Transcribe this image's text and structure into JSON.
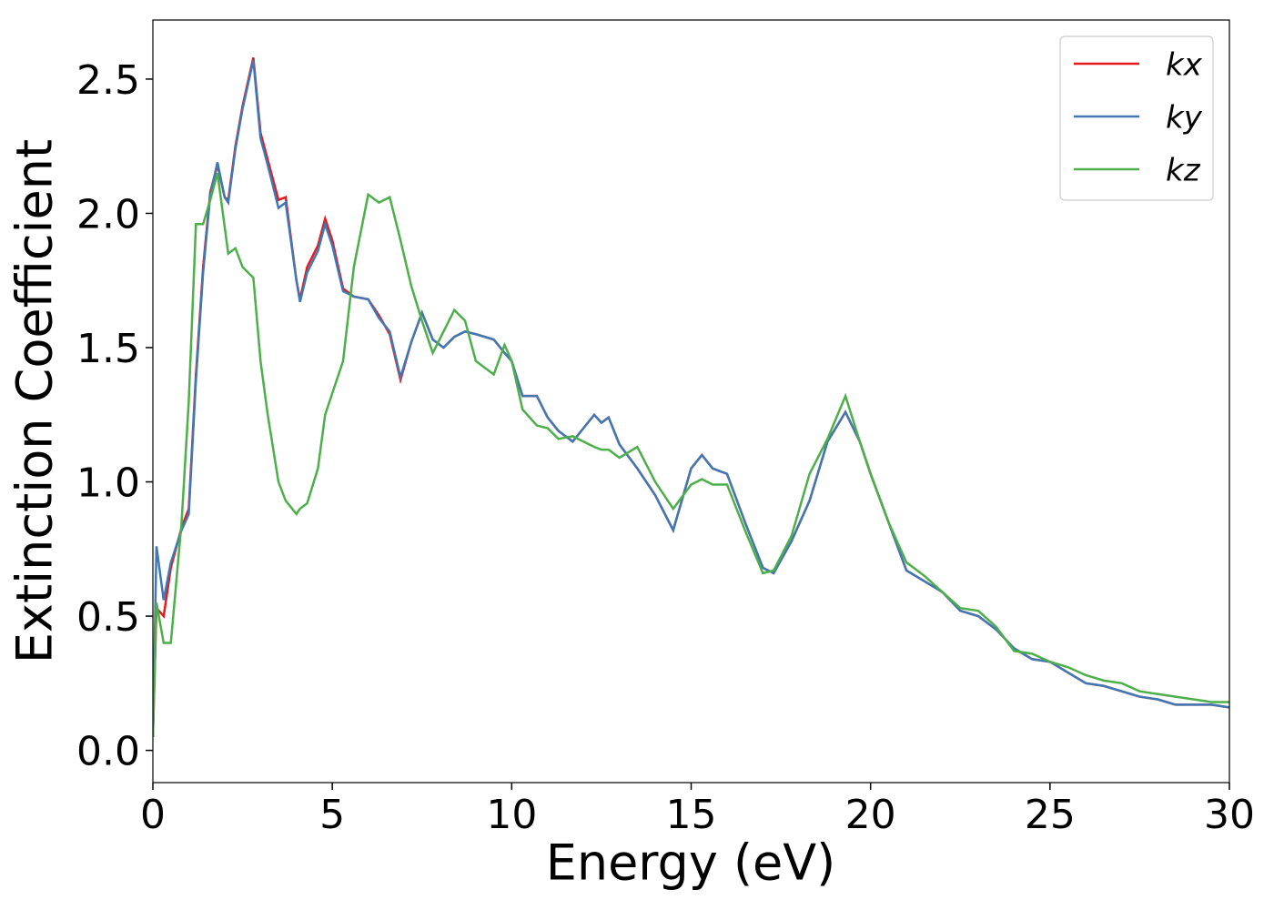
{
  "chart_data": {
    "type": "line",
    "xlabel": "Energy (eV)",
    "ylabel": "Extinction Coefficient",
    "xlim": [
      0,
      30
    ],
    "ylim": [
      -0.12,
      2.72
    ],
    "xticks": [
      0,
      5,
      10,
      15,
      20,
      25,
      30
    ],
    "yticks": [
      {
        "value": 0,
        "label": "0.0"
      },
      {
        "value": 0.5,
        "label": "0.5"
      },
      {
        "value": 1,
        "label": "1.0"
      },
      {
        "value": 1.5,
        "label": "1.5"
      },
      {
        "value": 2,
        "label": "2.0"
      },
      {
        "value": 2.5,
        "label": "2.5"
      }
    ],
    "legend": "upper right",
    "grid": false,
    "x": [
      0,
      0.1,
      0.3,
      0.5,
      0.8,
      1.0,
      1.2,
      1.4,
      1.6,
      1.8,
      2.0,
      2.1,
      2.3,
      2.5,
      2.8,
      3.0,
      3.2,
      3.5,
      3.7,
      4.0,
      4.1,
      4.3,
      4.6,
      4.8,
      5.0,
      5.3,
      5.6,
      6.0,
      6.3,
      6.6,
      6.9,
      7.2,
      7.5,
      7.8,
      8.1,
      8.4,
      8.7,
      9.0,
      9.5,
      9.8,
      10.0,
      10.3,
      10.7,
      11.0,
      11.3,
      11.7,
      12.0,
      12.3,
      12.5,
      12.7,
      13.0,
      13.5,
      14.0,
      14.5,
      15.0,
      15.3,
      15.6,
      16.0,
      16.5,
      17.0,
      17.3,
      17.8,
      18.3,
      18.8,
      19.3,
      19.7,
      20.0,
      20.5,
      21.0,
      21.5,
      22.0,
      22.5,
      23.0,
      23.5,
      24.0,
      24.5,
      25.0,
      25.5,
      26.0,
      26.5,
      27.0,
      27.5,
      28.0,
      28.5,
      29.0,
      29.5,
      30.0
    ],
    "series": [
      {
        "name": "kx",
        "color": "#e41a1c",
        "values": [
          0.05,
          0.53,
          0.5,
          0.68,
          0.83,
          0.9,
          1.4,
          1.8,
          2.08,
          2.18,
          2.06,
          2.05,
          2.25,
          2.4,
          2.58,
          2.3,
          2.2,
          2.05,
          2.06,
          1.75,
          1.68,
          1.8,
          1.88,
          1.98,
          1.9,
          1.72,
          1.69,
          1.68,
          1.62,
          1.55,
          1.38,
          1.52,
          1.63,
          1.53,
          1.5,
          1.54,
          1.56,
          1.55,
          1.53,
          1.48,
          1.45,
          1.32,
          1.32,
          1.24,
          1.19,
          1.15,
          1.2,
          1.25,
          1.22,
          1.24,
          1.14,
          1.05,
          0.95,
          0.82,
          1.05,
          1.1,
          1.05,
          1.03,
          0.85,
          0.68,
          0.66,
          0.78,
          0.93,
          1.15,
          1.26,
          1.15,
          1.03,
          0.85,
          0.67,
          0.63,
          0.59,
          0.52,
          0.5,
          0.45,
          0.38,
          0.34,
          0.33,
          0.29,
          0.25,
          0.24,
          0.22,
          0.2,
          0.19,
          0.17,
          0.17,
          0.17,
          0.16
        ]
      },
      {
        "name": "ky",
        "color": "#3f78b4",
        "values": [
          0.05,
          0.76,
          0.56,
          0.7,
          0.82,
          0.88,
          1.38,
          1.78,
          2.07,
          2.19,
          2.06,
          2.04,
          2.24,
          2.39,
          2.57,
          2.28,
          2.18,
          2.02,
          2.04,
          1.75,
          1.67,
          1.78,
          1.86,
          1.96,
          1.88,
          1.71,
          1.69,
          1.68,
          1.61,
          1.56,
          1.39,
          1.52,
          1.63,
          1.53,
          1.5,
          1.54,
          1.56,
          1.55,
          1.53,
          1.48,
          1.45,
          1.32,
          1.32,
          1.24,
          1.19,
          1.15,
          1.2,
          1.25,
          1.22,
          1.24,
          1.14,
          1.05,
          0.95,
          0.82,
          1.05,
          1.1,
          1.05,
          1.03,
          0.85,
          0.68,
          0.66,
          0.78,
          0.93,
          1.15,
          1.26,
          1.15,
          1.03,
          0.85,
          0.67,
          0.63,
          0.59,
          0.52,
          0.5,
          0.45,
          0.38,
          0.34,
          0.33,
          0.29,
          0.25,
          0.24,
          0.22,
          0.2,
          0.19,
          0.17,
          0.17,
          0.17,
          0.16
        ]
      },
      {
        "name": "kz",
        "color": "#4daf4a",
        "values": [
          0.05,
          0.55,
          0.4,
          0.4,
          0.85,
          1.3,
          1.96,
          1.96,
          2.05,
          2.15,
          1.95,
          1.85,
          1.87,
          1.8,
          1.76,
          1.45,
          1.25,
          1.0,
          0.93,
          0.88,
          0.9,
          0.92,
          1.05,
          1.25,
          1.33,
          1.45,
          1.8,
          2.07,
          2.04,
          2.06,
          1.9,
          1.73,
          1.6,
          1.48,
          1.56,
          1.64,
          1.6,
          1.45,
          1.4,
          1.51,
          1.45,
          1.27,
          1.21,
          1.2,
          1.16,
          1.17,
          1.15,
          1.13,
          1.12,
          1.12,
          1.09,
          1.13,
          1.0,
          0.9,
          0.99,
          1.01,
          0.99,
          0.99,
          0.82,
          0.66,
          0.67,
          0.8,
          1.03,
          1.16,
          1.32,
          1.15,
          1.03,
          0.85,
          0.7,
          0.65,
          0.59,
          0.53,
          0.52,
          0.46,
          0.37,
          0.36,
          0.33,
          0.31,
          0.28,
          0.26,
          0.25,
          0.22,
          0.21,
          0.2,
          0.19,
          0.18,
          0.18
        ]
      }
    ]
  }
}
